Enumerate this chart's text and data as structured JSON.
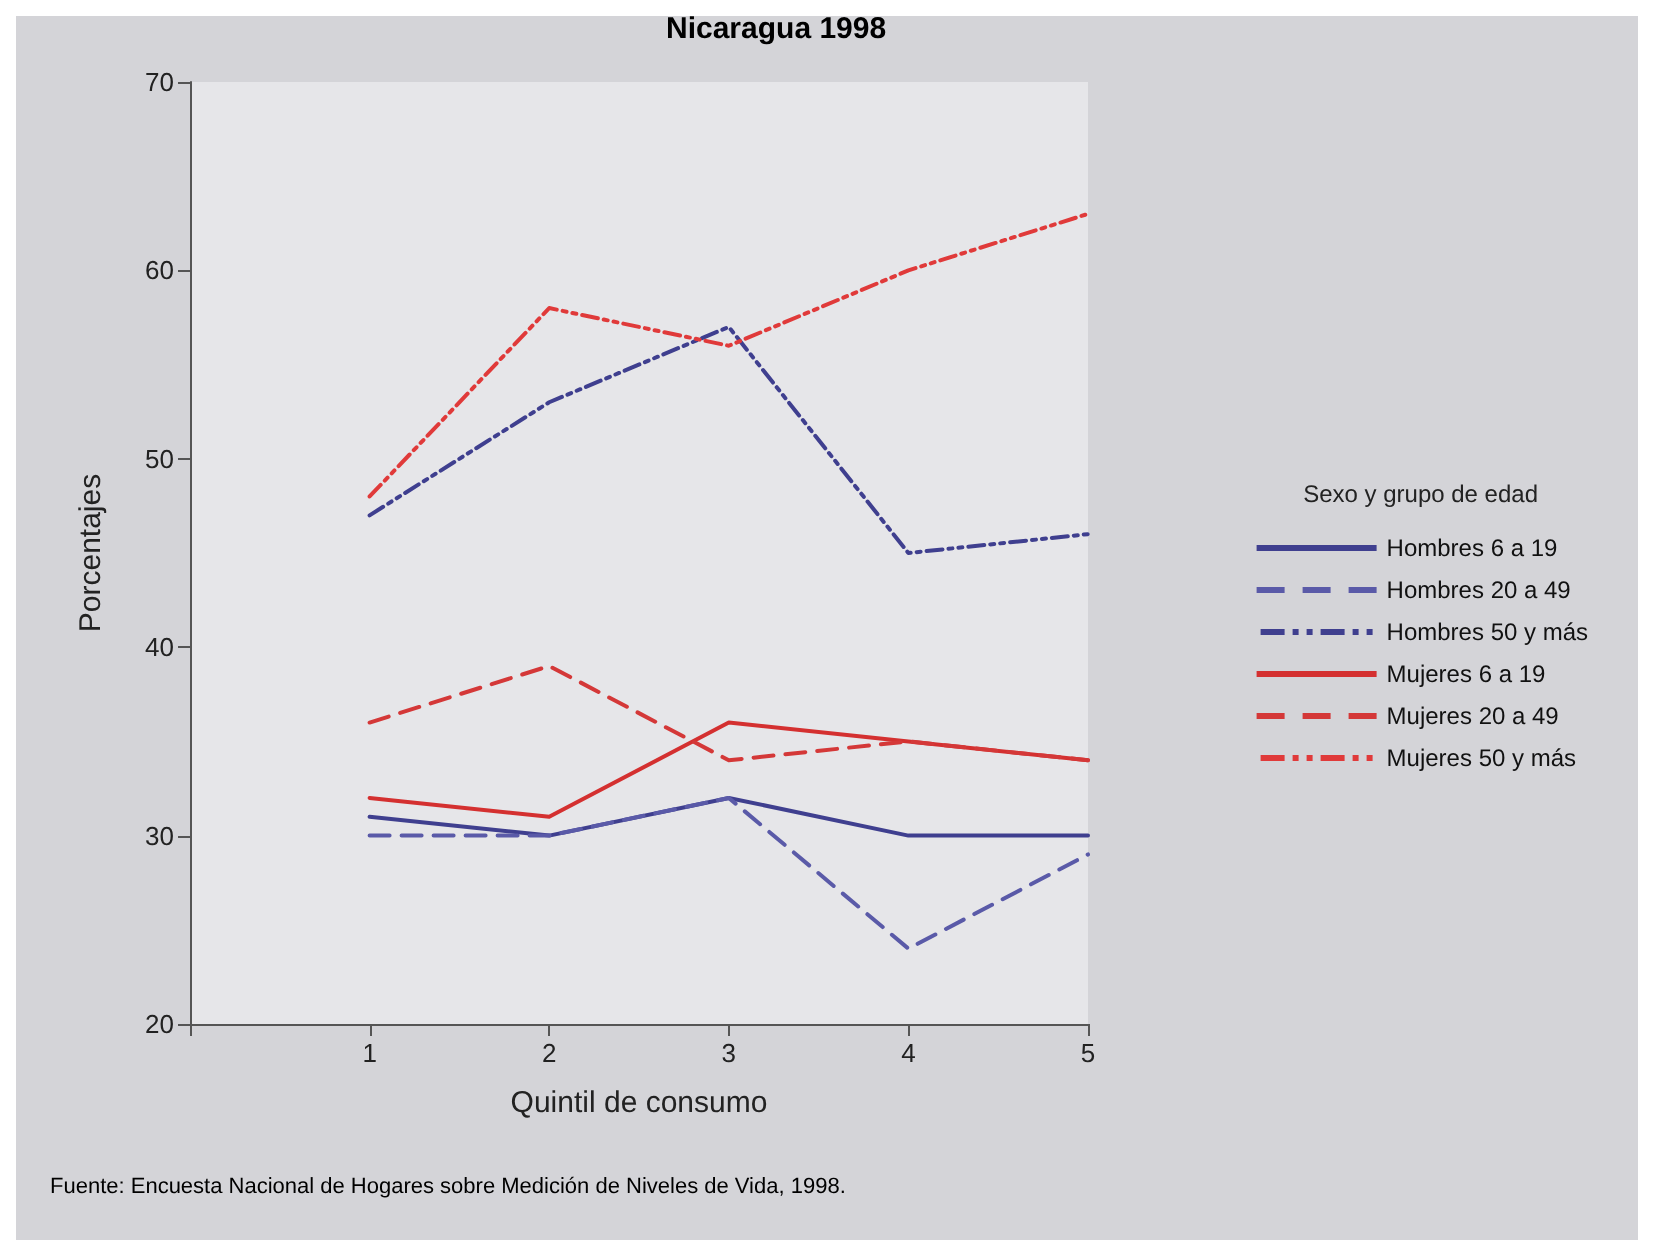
{
  "chart_data": {
    "type": "line",
    "title": "Nicaragua 1998",
    "xlabel": "Quintil de consumo",
    "ylabel": "Porcentajes",
    "legend_title": "Sexo y grupo de edad",
    "x": [
      1,
      2,
      3,
      4,
      5
    ],
    "xlim": [
      0,
      5
    ],
    "xticks": [
      {
        "value": 0,
        "label": null
      },
      1,
      2,
      3,
      4,
      5
    ],
    "ylim": [
      20,
      70
    ],
    "yticks": [
      20,
      30,
      40,
      50,
      60,
      70
    ],
    "grid": false,
    "legend": "right",
    "marker": "none",
    "series": [
      {
        "name": "Hombres 6 a 19",
        "color": "#3f3f8f",
        "line_style": "solid",
        "values": [
          31,
          30,
          32,
          30,
          30
        ]
      },
      {
        "name": "Hombres 20 a 49",
        "color": "#5a5aa8",
        "line_style": "dashed",
        "values": [
          30,
          30,
          32,
          24,
          29
        ]
      },
      {
        "name": "Hombres 50 y más",
        "color": "#3f3f8f",
        "line_style": "dotted",
        "values": [
          47,
          53,
          57,
          45,
          46
        ]
      },
      {
        "name": "Mujeres 6 a 19",
        "color": "#d43030",
        "line_style": "solid",
        "values": [
          32,
          31,
          36,
          35,
          34
        ]
      },
      {
        "name": "Mujeres 20 a 49",
        "color": "#d43838",
        "line_style": "dashed",
        "values": [
          36,
          39,
          34,
          35,
          34
        ]
      },
      {
        "name": "Mujeres 50 y más",
        "color": "#e03a3a",
        "line_style": "dotted",
        "values": [
          48,
          58,
          56,
          60,
          63
        ]
      }
    ],
    "annotations": [
      "Fuente: Encuesta Nacional de Hogares sobre Medición de Niveles de Vida, 1998."
    ]
  }
}
